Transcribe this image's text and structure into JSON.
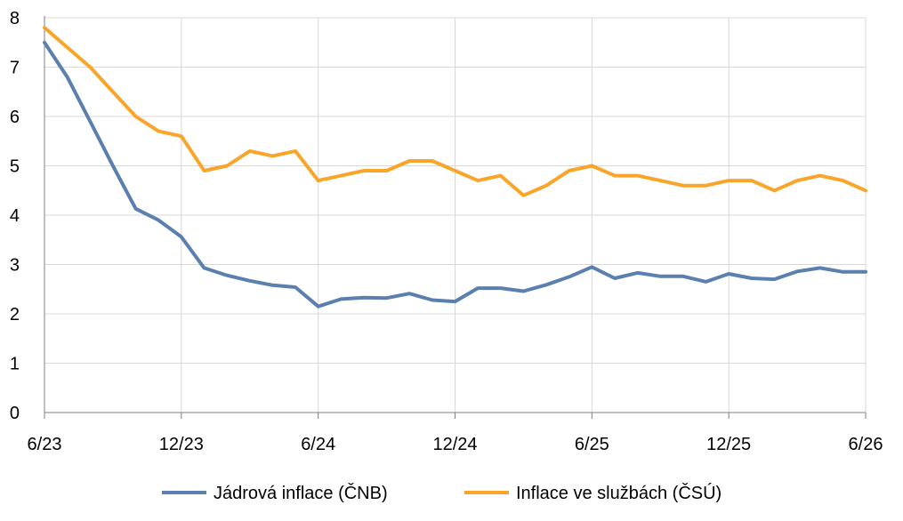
{
  "chart_data": {
    "type": "line",
    "title": "",
    "xlabel": "",
    "ylabel": "",
    "ylim": [
      0,
      8
    ],
    "yticks": [
      "0",
      "1",
      "2",
      "3",
      "4",
      "5",
      "6",
      "7",
      "8"
    ],
    "xtick_labels": [
      "6/23",
      "12/23",
      "6/24",
      "12/24",
      "6/25",
      "12/25",
      "6/26"
    ],
    "x": [
      "6/23",
      "7/23",
      "8/23",
      "9/23",
      "10/23",
      "11/23",
      "12/23",
      "1/24",
      "2/24",
      "3/24",
      "4/24",
      "5/24",
      "6/24",
      "7/24",
      "8/24",
      "9/24",
      "10/24",
      "11/24",
      "12/24",
      "1/25",
      "2/25",
      "3/25",
      "4/25",
      "5/25",
      "6/25",
      "7/25",
      "8/25",
      "9/25",
      "10/25",
      "11/25",
      "12/25",
      "1/26",
      "2/26",
      "3/26",
      "4/26",
      "5/26",
      "6/26"
    ],
    "grid": true,
    "legend_position": "bottom",
    "series": [
      {
        "name": "Jádrová inflace (ČNB)",
        "color": "#5b7fae",
        "values": [
          7.5,
          6.8,
          5.9,
          5.0,
          4.13,
          3.9,
          3.56,
          2.93,
          2.78,
          2.67,
          2.58,
          2.54,
          2.15,
          2.3,
          2.33,
          2.32,
          2.41,
          2.28,
          2.25,
          2.52,
          2.52,
          2.46,
          2.59,
          2.75,
          2.95,
          2.72,
          2.83,
          2.76,
          2.76,
          2.65,
          2.81,
          2.72,
          2.7,
          2.86,
          2.93,
          2.85,
          2.85
        ]
      },
      {
        "name": "Inflace ve službách (ČSÚ)",
        "color": "#f9a52a",
        "values": [
          7.8,
          7.4,
          7.0,
          6.5,
          6.0,
          5.7,
          5.6,
          4.9,
          5.0,
          5.3,
          5.2,
          5.3,
          4.7,
          4.8,
          4.9,
          4.9,
          5.1,
          5.1,
          4.9,
          4.7,
          4.8,
          4.4,
          4.6,
          4.9,
          5.0,
          4.8,
          4.8,
          4.7,
          4.6,
          4.6,
          4.7,
          4.7,
          4.5,
          4.7,
          4.8,
          4.7,
          4.5
        ]
      }
    ]
  }
}
